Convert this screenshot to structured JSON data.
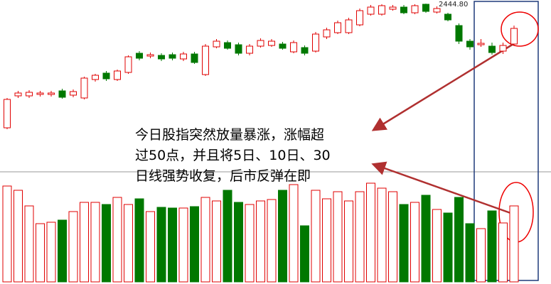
{
  "chart_data": [
    {
      "type": "candlestick",
      "ylim": [
        1975,
        2455
      ],
      "up_color": "#e00000",
      "down_color": "#007800",
      "max_label": {
        "value": 2444.8,
        "label": "2444.80"
      },
      "annotation": [
        "今日股指突然放量暴涨，涨幅超",
        "过50点，并且将5日、10日、30",
        "日线强势收复，后市反弹在即"
      ],
      "open": [
        2095,
        2185,
        2185,
        2189,
        2189,
        2199,
        2187,
        2179,
        2231,
        2249,
        2231,
        2251,
        2305,
        2297,
        2299,
        2301,
        2289,
        2303,
        2245,
        2323,
        2335,
        2329,
        2305,
        2325,
        2327,
        2331,
        2309,
        2321,
        2311,
        2351,
        2363,
        2363,
        2385,
        2415,
        2415,
        2429,
        2435,
        2419,
        2443,
        2421,
        2415,
        2383,
        2339,
        2329,
        2325,
        2311,
        2331
      ],
      "high": [
        2179,
        2199,
        2201,
        2199,
        2199,
        2205,
        2203,
        2239,
        2247,
        2255,
        2259,
        2299,
        2311,
        2307,
        2305,
        2307,
        2309,
        2309,
        2331,
        2345,
        2341,
        2335,
        2331,
        2347,
        2345,
        2337,
        2341,
        2327,
        2365,
        2377,
        2397,
        2405,
        2431,
        2441,
        2443,
        2441,
        2441,
        2443,
        2444.8,
        2437,
        2419,
        2389,
        2345,
        2345,
        2335,
        2335,
        2383
      ],
      "low": [
        2091,
        2179,
        2179,
        2183,
        2183,
        2177,
        2181,
        2175,
        2225,
        2227,
        2227,
        2247,
        2285,
        2291,
        2283,
        2285,
        2283,
        2275,
        2241,
        2319,
        2315,
        2299,
        2299,
        2321,
        2323,
        2315,
        2305,
        2299,
        2307,
        2345,
        2359,
        2359,
        2381,
        2411,
        2411,
        2425,
        2415,
        2415,
        2419,
        2417,
        2395,
        2331,
        2315,
        2323,
        2301,
        2303,
        2327
      ],
      "close": [
        2175,
        2193,
        2195,
        2193,
        2193,
        2181,
        2197,
        2235,
        2243,
        2233,
        2255,
        2295,
        2291,
        2301,
        2289,
        2291,
        2303,
        2279,
        2325,
        2339,
        2319,
        2305,
        2325,
        2341,
        2339,
        2319,
        2335,
        2305,
        2359,
        2371,
        2391,
        2399,
        2425,
        2435,
        2439,
        2435,
        2419,
        2439,
        2423,
        2431,
        2399,
        2339,
        2323,
        2333,
        2307,
        2327,
        2375
      ]
    },
    {
      "type": "bar",
      "ylim": [
        0,
        154
      ],
      "values": [
        135,
        129,
        107,
        82,
        84,
        87,
        99,
        112,
        112,
        109,
        119,
        109,
        117,
        99,
        105,
        104,
        104,
        106,
        119,
        114,
        129,
        112,
        109,
        114,
        116,
        129,
        137,
        79,
        129,
        117,
        127,
        114,
        127,
        139,
        132,
        127,
        109,
        112,
        122,
        102,
        97,
        119,
        82,
        75,
        100,
        83,
        107
      ]
    }
  ]
}
